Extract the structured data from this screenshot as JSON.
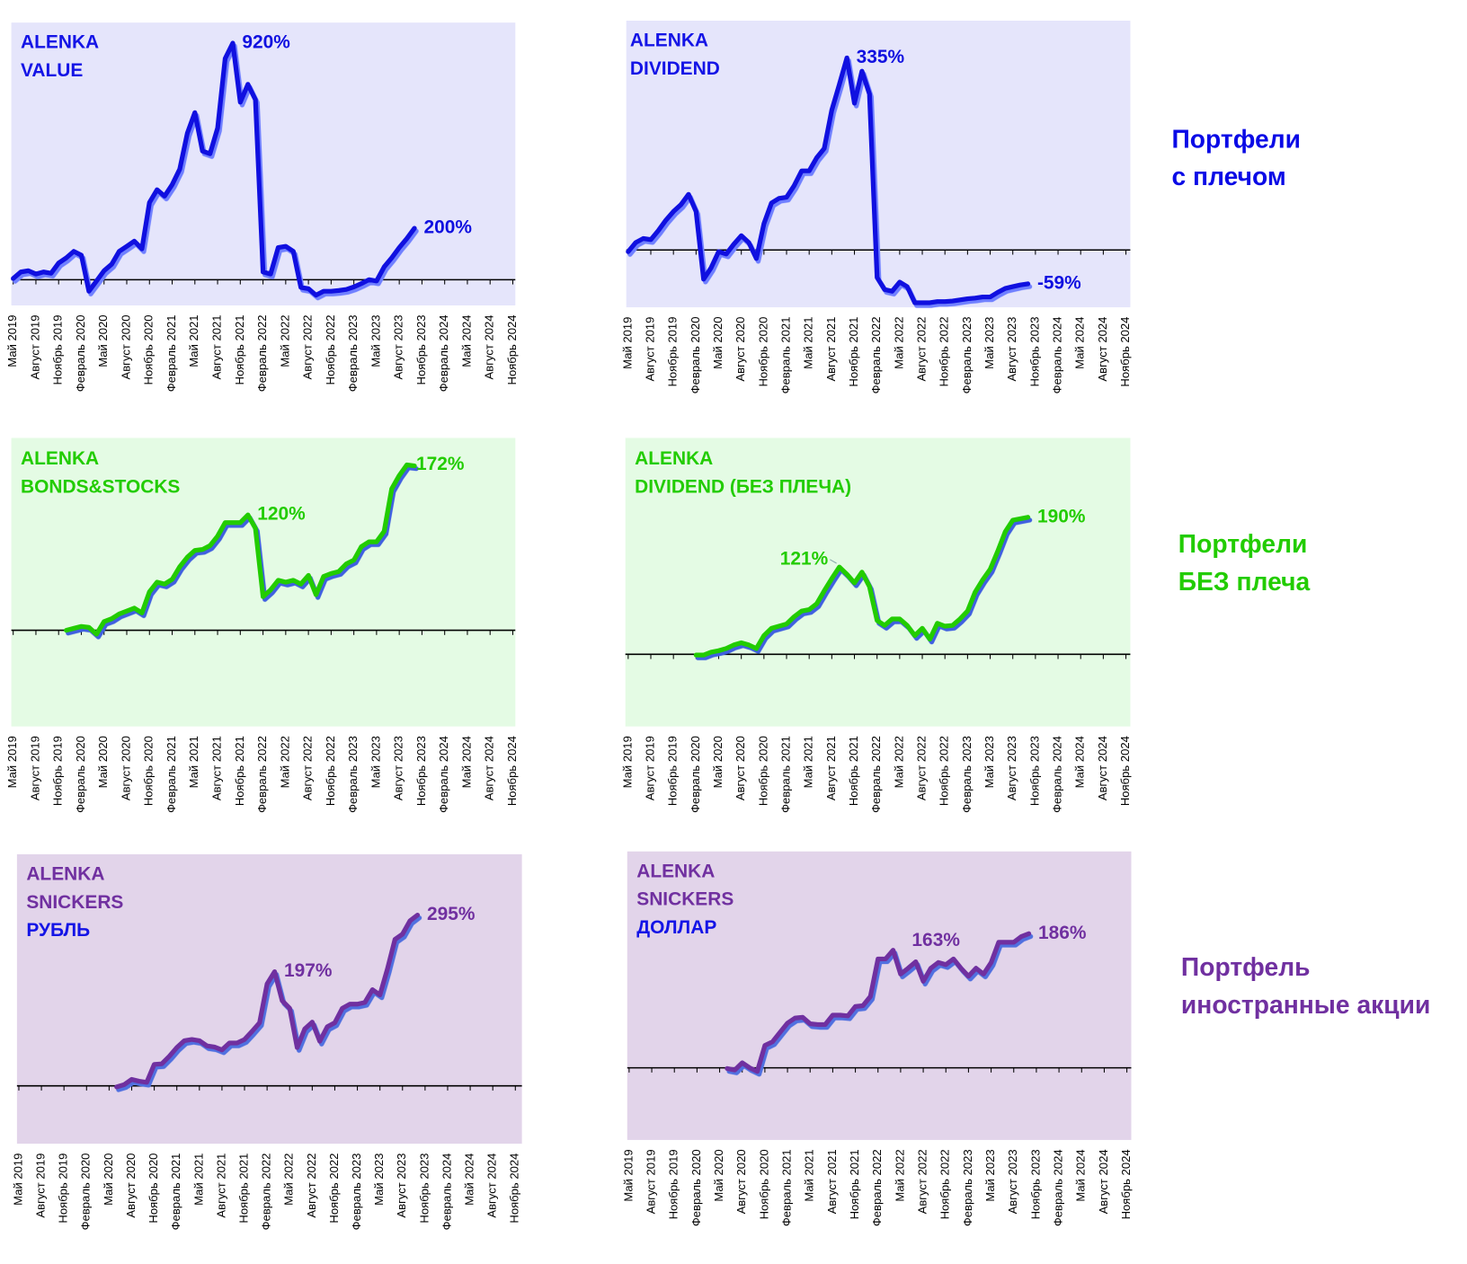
{
  "chart_data": [
    {
      "type": "line",
      "title": [
        "ALENKA",
        "VALUE"
      ],
      "title_colors": [
        "#1414e6",
        "#1414e6"
      ],
      "background": "#e5e5fb",
      "color": "#1010e0",
      "shadow": "#7080ff",
      "ylim": [
        -100,
        1000
      ],
      "categories": [
        "Май 2019",
        null,
        null,
        "Август 2019",
        null,
        null,
        "Ноябрь 2019",
        null,
        null,
        "Февраль 2020",
        null,
        null,
        "Май 2020",
        null,
        null,
        "Август 2020",
        null,
        null,
        "Ноябрь 2020",
        null,
        null,
        "Февраль 2021",
        null,
        null,
        "Май 2021",
        null,
        null,
        "Август 2021",
        null,
        null,
        "Ноябрь 2021",
        null,
        null,
        "Февраль 2022",
        null,
        null,
        "Май 2022",
        null,
        null,
        "Август 2022",
        null,
        null,
        "Ноябрь 2022",
        null,
        null,
        "Февраль 2023",
        null,
        null,
        "Май 2023",
        null,
        null,
        "Август 2023",
        null,
        null,
        "Ноябрь 2023",
        null,
        null,
        "Февраль 2024",
        null,
        null,
        "Май 2024",
        null,
        null,
        "Август 2024",
        null,
        null,
        "Ноябрь 2024"
      ],
      "values": [
        5,
        30,
        35,
        22,
        30,
        25,
        65,
        85,
        110,
        95,
        -45,
        -5,
        35,
        60,
        110,
        130,
        150,
        120,
        300,
        350,
        325,
        370,
        430,
        570,
        650,
        500,
        490,
        590,
        860,
        920,
        690,
        760,
        700,
        30,
        22,
        125,
        130,
        110,
        -30,
        -35,
        -60,
        -45,
        -45,
        -42,
        -38,
        -28,
        -15,
        0,
        -5,
        50,
        85,
        125,
        160,
        200,
        null,
        null,
        null,
        null,
        null,
        null,
        null,
        null,
        null,
        null,
        null,
        null,
        null
      ],
      "value_labels": {
        "29": "920%",
        "53": "200%"
      }
    },
    {
      "type": "line",
      "title": [
        "ALENKA",
        "DIVIDEND"
      ],
      "title_colors": [
        "#1414e6",
        "#1414e6"
      ],
      "background": "#e5e5fb",
      "color": "#1010e0",
      "shadow": "#7080ff",
      "ylim": [
        -100,
        400
      ],
      "categories": [
        "Май 2019",
        null,
        null,
        "Август 2019",
        null,
        null,
        "Ноябрь 2019",
        null,
        null,
        "Февраль 2020",
        null,
        null,
        "Май 2020",
        null,
        null,
        "Август 2020",
        null,
        null,
        "Ноябрь 2020",
        null,
        null,
        "Февраль 2021",
        null,
        null,
        "Май 2021",
        null,
        null,
        "Август 2021",
        null,
        null,
        "Ноябрь 2021",
        null,
        null,
        "Февраль 2022",
        null,
        null,
        "Май 2022",
        null,
        null,
        "Август 2022",
        null,
        null,
        "Ноябрь 2022",
        null,
        null,
        "Февраль 2023",
        null,
        null,
        "Май 2023",
        null,
        null,
        "Август 2023",
        null,
        null,
        "Ноябрь 2023",
        null,
        null,
        "Февраль 2024",
        null,
        null,
        "Май 2024",
        null,
        null,
        "Август 2024",
        null,
        null,
        "Ноябрь 2024"
      ],
      "values": [
        -3,
        13,
        20,
        18,
        34,
        52,
        67,
        79,
        97,
        67,
        -51,
        -31,
        -3,
        -7,
        10,
        25,
        13,
        -15,
        46,
        82,
        90,
        92,
        112,
        138,
        138,
        161,
        177,
        244,
        289,
        335,
        256,
        312,
        272,
        -48,
        -69,
        -72,
        -56,
        -64,
        -92,
        -92,
        -92,
        -90,
        -90,
        -89,
        -87,
        -85,
        -84,
        -82,
        -82,
        -74,
        -67,
        -64,
        -61,
        -59,
        null,
        null,
        null,
        null,
        null,
        null,
        null,
        null,
        null,
        null,
        null,
        null,
        null
      ],
      "value_labels": {
        "29": "335%",
        "53": "-59%"
      }
    },
    {
      "type": "line",
      "title": [
        "ALENKA",
        "BONDS&STOCKS"
      ],
      "title_colors": [
        "#22cc00",
        "#22cc00"
      ],
      "background": "#e4fbe4",
      "color": "#22cc00",
      "shadow": "#4060e0",
      "ylim": [
        -100,
        200
      ],
      "categories": [
        "Май 2019",
        null,
        null,
        "Август 2019",
        null,
        null,
        "Ноябрь 2019",
        null,
        null,
        "Февраль 2020",
        null,
        null,
        "Май 2020",
        null,
        null,
        "Август 2020",
        null,
        null,
        "Ноябрь 2020",
        null,
        null,
        "Февраль 2021",
        null,
        null,
        "Май 2021",
        null,
        null,
        "Август 2021",
        null,
        null,
        "Ноябрь 2021",
        null,
        null,
        "Февраль 2022",
        null,
        null,
        "Май 2022",
        null,
        null,
        "Август 2022",
        null,
        null,
        "Ноябрь 2022",
        null,
        null,
        "Февраль 2023",
        null,
        null,
        "Май 2023",
        null,
        null,
        "Август 2023",
        null,
        null,
        "Ноябрь 2023",
        null,
        null,
        "Февраль 2024",
        null,
        null,
        "Май 2024",
        null,
        null,
        "Август 2024",
        null,
        null,
        "Ноябрь 2024"
      ],
      "values": [
        null,
        null,
        null,
        null,
        null,
        null,
        null,
        0,
        2,
        4,
        3,
        -4,
        9,
        12,
        17,
        20,
        23,
        18,
        40,
        50,
        48,
        53,
        66,
        76,
        83,
        84,
        88,
        98,
        112,
        112,
        112,
        120,
        106,
        35,
        42,
        52,
        50,
        52,
        48,
        57,
        37,
        56,
        59,
        61,
        69,
        73,
        87,
        92,
        92,
        103,
        147,
        161,
        172,
        171,
        null,
        null,
        null,
        null,
        null,
        null,
        null,
        null,
        null,
        null,
        null,
        null,
        null
      ],
      "value_labels": {
        "31": "120%",
        "52": "172%"
      }
    },
    {
      "type": "line",
      "title": [
        "ALENKA",
        "DIVIDEND (БЕЗ ПЛЕЧА)"
      ],
      "title_colors": [
        "#22cc00",
        "#22cc00"
      ],
      "background": "#e4fbe4",
      "color": "#22cc00",
      "shadow": "#4060e0",
      "ylim": [
        -100,
        300
      ],
      "categories": [
        "Май 2019",
        null,
        null,
        "Август 2019",
        null,
        null,
        "Ноябрь 2019",
        null,
        null,
        "Февраль 2020",
        null,
        null,
        "Май 2020",
        null,
        null,
        "Август 2020",
        null,
        null,
        "Ноябрь 2020",
        null,
        null,
        "Февраль 2021",
        null,
        null,
        "Май 2021",
        null,
        null,
        "Август 2021",
        null,
        null,
        "Ноябрь 2021",
        null,
        null,
        "Февраль 2022",
        null,
        null,
        "Май 2022",
        null,
        null,
        "Август 2022",
        null,
        null,
        "Ноябрь 2022",
        null,
        null,
        "Февраль 2023",
        null,
        null,
        "Май 2023",
        null,
        null,
        "Август 2023",
        null,
        null,
        "Ноябрь 2023",
        null,
        null,
        "Февраль 2024",
        null,
        null,
        "Май 2024",
        null,
        null,
        "Август 2024",
        null,
        null,
        "Ноябрь 2024"
      ],
      "values": [
        null,
        null,
        null,
        null,
        null,
        null,
        null,
        null,
        null,
        -1,
        -1,
        3,
        5,
        8,
        13,
        16,
        13,
        8,
        26,
        36,
        39,
        42,
        52,
        60,
        62,
        70,
        88,
        105,
        121,
        111,
        99,
        114,
        94,
        47,
        40,
        49,
        49,
        40,
        26,
        36,
        21,
        43,
        39,
        40,
        49,
        60,
        86,
        103,
        118,
        143,
        170,
        186,
        188,
        190,
        null,
        null,
        null,
        null,
        null,
        null,
        null,
        null,
        null,
        null,
        null,
        null,
        null
      ],
      "value_labels": {
        "28": "121%",
        "53": "190%"
      }
    },
    {
      "type": "line",
      "title": [
        "ALENKA",
        "SNICKERS",
        "РУБЛЬ"
      ],
      "title_colors": [
        "#7030a0",
        "#7030a0",
        "#1414e6"
      ],
      "background": "#e2d4ea",
      "color": "#7030a0",
      "shadow": "#5070e0",
      "ylim": [
        -100,
        400
      ],
      "categories": [
        "Май 2019",
        null,
        null,
        "Август 2019",
        null,
        null,
        "Ноябрь 2019",
        null,
        null,
        "Февраль 2020",
        null,
        null,
        "Май 2020",
        null,
        null,
        "Август 2020",
        null,
        null,
        "Ноябрь 2020",
        null,
        null,
        "Февраль 2021",
        null,
        null,
        "Май 2021",
        null,
        null,
        "Август 2021",
        null,
        null,
        "Ноябрь 2021",
        null,
        null,
        "Февраль 2022",
        null,
        null,
        "Май 2022",
        null,
        null,
        "Август 2022",
        null,
        null,
        "Ноябрь 2022",
        null,
        null,
        "Февраль 2023",
        null,
        null,
        "Май 2023",
        null,
        null,
        "Август 2023",
        null,
        null,
        "Ноябрь 2023",
        null,
        null,
        "Февраль 2024",
        null,
        null,
        "Май 2024",
        null,
        null,
        "Август 2024",
        null,
        null,
        "Ноябрь 2024"
      ],
      "values": [
        null,
        null,
        null,
        null,
        null,
        null,
        null,
        null,
        null,
        null,
        null,
        null,
        null,
        -2,
        2,
        11,
        8,
        6,
        37,
        38,
        51,
        66,
        78,
        80,
        78,
        69,
        67,
        62,
        74,
        74,
        80,
        94,
        109,
        176,
        197,
        147,
        134,
        66,
        98,
        110,
        77,
        102,
        109,
        134,
        141,
        141,
        144,
        166,
        157,
        202,
        253,
        262,
        285,
        295,
        null,
        null,
        null,
        null,
        null,
        null,
        null,
        null,
        null,
        null,
        null,
        null,
        null
      ],
      "value_labels": {
        "34": "197%",
        "53": "295%"
      }
    },
    {
      "type": "line",
      "title": [
        "ALENKA",
        "SNICKERS",
        "ДОЛЛАР"
      ],
      "title_colors": [
        "#7030a0",
        "#7030a0",
        "#1414e6"
      ],
      "background": "#e2d4ea",
      "color": "#7030a0",
      "shadow": "#5070e0",
      "ylim": [
        -100,
        300
      ],
      "categories": [
        "Май 2019",
        null,
        null,
        "Август 2019",
        null,
        null,
        "Ноябрь 2019",
        null,
        null,
        "Февраль 2020",
        null,
        null,
        "Май 2020",
        null,
        null,
        "Август 2020",
        null,
        null,
        "Ноябрь 2020",
        null,
        null,
        "Февраль 2021",
        null,
        null,
        "Май 2021",
        null,
        null,
        "Август 2021",
        null,
        null,
        "Ноябрь 2021",
        null,
        null,
        "Февраль 2022",
        null,
        null,
        "Май 2022",
        null,
        null,
        "Август 2022",
        null,
        null,
        "Ноябрь 2022",
        null,
        null,
        "Февраль 2023",
        null,
        null,
        "Май 2023",
        null,
        null,
        "Август 2023",
        null,
        null,
        "Ноябрь 2023",
        null,
        null,
        "Февраль 2024",
        null,
        null,
        "Май 2024",
        null,
        null,
        "Август 2024",
        null,
        null,
        "Ноябрь 2024"
      ],
      "values": [
        null,
        null,
        null,
        null,
        null,
        null,
        null,
        null,
        null,
        null,
        null,
        null,
        null,
        -1,
        -3,
        7,
        0,
        -5,
        31,
        36,
        49,
        62,
        69,
        70,
        61,
        60,
        60,
        73,
        73,
        72,
        85,
        86,
        99,
        151,
        151,
        163,
        130,
        138,
        147,
        120,
        138,
        146,
        143,
        151,
        138,
        127,
        138,
        130,
        146,
        174,
        174,
        174,
        182,
        186,
        null,
        null,
        null,
        null,
        null,
        null,
        null,
        null,
        null,
        null,
        null,
        null,
        null
      ],
      "value_labels": {
        "35": "163%",
        "53": "186%"
      }
    }
  ],
  "side_labels": [
    {
      "lines": [
        "Портфели",
        "с плечом"
      ],
      "color": "#0a0ae6"
    },
    {
      "lines": [
        "Портфели",
        "БЕЗ плеча"
      ],
      "color": "#22cc00"
    },
    {
      "lines": [
        "Портфель",
        "иностранные акции"
      ],
      "color": "#7030a0"
    }
  ]
}
